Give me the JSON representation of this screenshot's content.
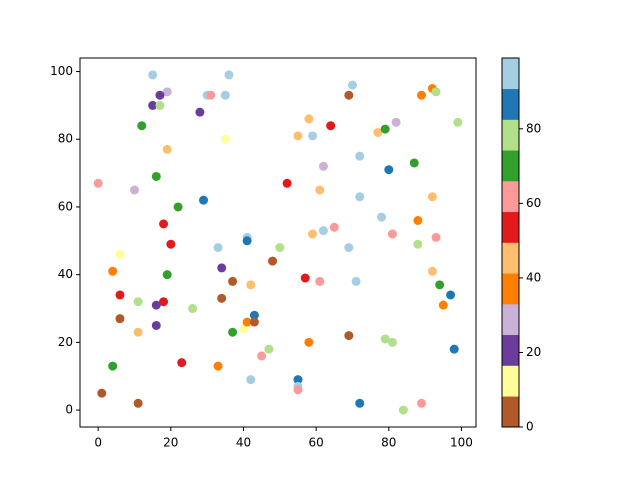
{
  "chart_data": {
    "type": "scatter",
    "x": [
      15,
      36,
      19,
      17,
      30,
      31,
      35,
      15,
      17,
      28,
      12,
      35,
      19,
      16,
      0,
      10,
      29,
      22,
      18,
      20,
      33,
      6,
      41,
      41,
      50,
      4,
      19,
      34,
      48,
      37,
      42,
      6,
      11,
      18,
      34,
      16,
      26,
      6,
      16,
      11,
      37,
      40,
      41,
      43,
      43,
      47,
      45,
      23,
      4,
      33,
      42,
      1,
      11,
      55,
      55,
      55,
      58,
      61,
      57,
      52,
      55,
      58,
      59,
      64,
      69,
      70,
      62,
      61,
      62,
      65,
      59,
      69,
      71,
      69,
      72,
      72,
      72,
      77,
      79,
      82,
      80,
      78,
      81,
      87,
      89,
      92,
      93,
      99,
      92,
      88,
      93,
      88,
      92,
      94,
      97,
      95,
      98,
      79,
      81,
      84,
      89
    ],
    "y": [
      99,
      99,
      94,
      93,
      93,
      93,
      93,
      90,
      90,
      88,
      84,
      80,
      77,
      69,
      67,
      65,
      62,
      60,
      55,
      49,
      48,
      46,
      51,
      50,
      48,
      41,
      40,
      42,
      44,
      38,
      37,
      34,
      32,
      32,
      33,
      31,
      30,
      27,
      25,
      23,
      23,
      24,
      26,
      28,
      26,
      18,
      16,
      14,
      13,
      13,
      9,
      5,
      2,
      9,
      7,
      6,
      20,
      38,
      39,
      67,
      81,
      86,
      81,
      84,
      93,
      96,
      72,
      65,
      53,
      54,
      52,
      48,
      38,
      22,
      2,
      75,
      63,
      82,
      83,
      85,
      71,
      57,
      52,
      73,
      93,
      95,
      94,
      85,
      63,
      56,
      51,
      49,
      41,
      37,
      34,
      31,
      18,
      21,
      20,
      0,
      2
    ],
    "c": [
      95,
      95,
      29,
      21,
      95,
      62,
      95,
      21,
      78,
      21,
      70,
      12,
      45,
      70,
      62,
      29,
      86,
      70,
      53,
      53,
      95,
      12,
      95,
      86,
      78,
      37,
      70,
      21,
      4,
      4,
      45,
      53,
      78,
      53,
      4,
      21,
      78,
      4,
      21,
      45,
      70,
      12,
      37,
      86,
      4,
      78,
      62,
      53,
      70,
      37,
      95,
      4,
      4,
      86,
      95,
      62,
      37,
      62,
      53,
      53,
      45,
      45,
      95,
      53,
      4,
      95,
      29,
      45,
      95,
      62,
      45,
      95,
      95,
      4,
      86,
      95,
      95,
      45,
      70,
      29,
      86,
      95,
      62,
      70,
      37,
      37,
      78,
      78,
      45,
      37,
      62,
      78,
      45,
      70,
      86,
      37,
      86,
      78,
      78,
      78,
      62
    ],
    "colormap": [
      "#b15928",
      "#ffff99",
      "#6a3d9a",
      "#cab2d6",
      "#ff7f00",
      "#fdbf6f",
      "#e31a1c",
      "#fb9a99",
      "#33a02c",
      "#b2df8a",
      "#1f78b4",
      "#a6cee3"
    ],
    "clim": [
      0,
      99
    ],
    "cticks": [
      0,
      20,
      40,
      60,
      80
    ],
    "xlim": [
      -5,
      104
    ],
    "ylim": [
      -5,
      104
    ],
    "xticks": [
      0,
      20,
      40,
      60,
      80,
      100
    ],
    "yticks": [
      0,
      20,
      40,
      60,
      80,
      100
    ]
  }
}
